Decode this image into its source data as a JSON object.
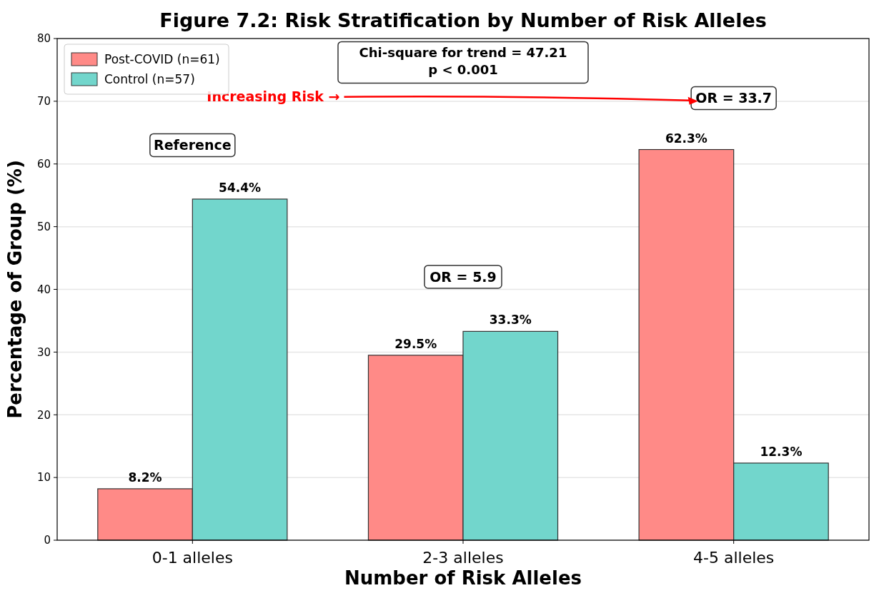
{
  "chart_data": {
    "type": "bar",
    "title": "Figure 7.2: Risk Stratification by Number of Risk Alleles",
    "xlabel": "Number of Risk Alleles",
    "ylabel": "Percentage of Group (%)",
    "categories": [
      "0-1 alleles",
      "2-3 alleles",
      "4-5 alleles"
    ],
    "series": [
      {
        "name": "Post-COVID (n=61)",
        "color": "#ff8a87",
        "values": [
          8.2,
          29.5,
          62.3
        ],
        "value_labels": [
          "8.2%",
          "29.5%",
          "62.3%"
        ]
      },
      {
        "name": "Control (n=57)",
        "color": "#72d6cc",
        "values": [
          54.4,
          33.3,
          12.3
        ],
        "value_labels": [
          "54.4%",
          "33.3%",
          "12.3%"
        ]
      }
    ],
    "ylim": [
      0,
      80
    ],
    "yticks": [
      0,
      10,
      20,
      30,
      40,
      50,
      60,
      70,
      80
    ],
    "grid": "y",
    "legend": "top left",
    "annotations": [
      "Reference",
      "OR = 5.9",
      "OR = 33.7",
      "Chi-square for trend = 47.21\np < 0.001",
      "Increasing Risk →"
    ]
  }
}
